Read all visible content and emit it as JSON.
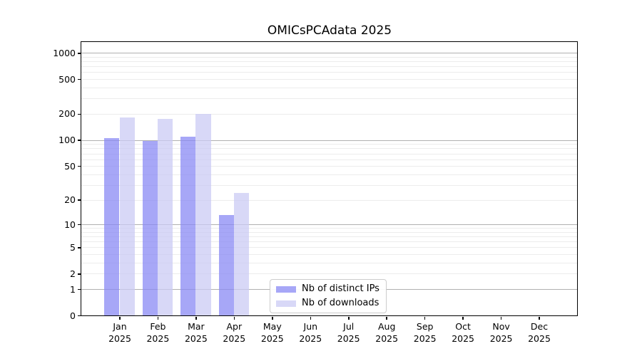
{
  "chart_data": {
    "type": "bar",
    "title": "OMICsPCAdata 2025",
    "categories": [
      "Jan",
      "Feb",
      "Mar",
      "Apr",
      "May",
      "Jun",
      "Jul",
      "Aug",
      "Sep",
      "Oct",
      "Nov",
      "Dec"
    ],
    "year_line": "2025",
    "series": [
      {
        "name": "Nb of distinct IPs",
        "key": "distinct-ips",
        "color": "rgba(138,138,244,0.75)",
        "values": [
          106,
          97,
          109,
          13,
          null,
          null,
          null,
          null,
          null,
          null,
          null,
          null
        ]
      },
      {
        "name": "Nb of downloads",
        "key": "downloads",
        "color": "rgba(203,203,244,0.75)",
        "values": [
          183,
          175,
          201,
          24,
          null,
          null,
          null,
          null,
          null,
          null,
          null,
          null
        ]
      }
    ],
    "yscale": "log1p",
    "yticks": [
      0,
      1,
      2,
      5,
      10,
      20,
      50,
      100,
      200,
      500,
      1000
    ],
    "major_gridlines": [
      1,
      10,
      100,
      1000
    ],
    "ylim": [
      0,
      1330
    ],
    "xlabel": "",
    "ylabel": "",
    "grid": "horizontal",
    "legend_position": "inside-bottom-center-left",
    "colors": {
      "spine": "#000000",
      "major_grid": "#b0b0b0",
      "minor_grid": "#ececec"
    }
  }
}
